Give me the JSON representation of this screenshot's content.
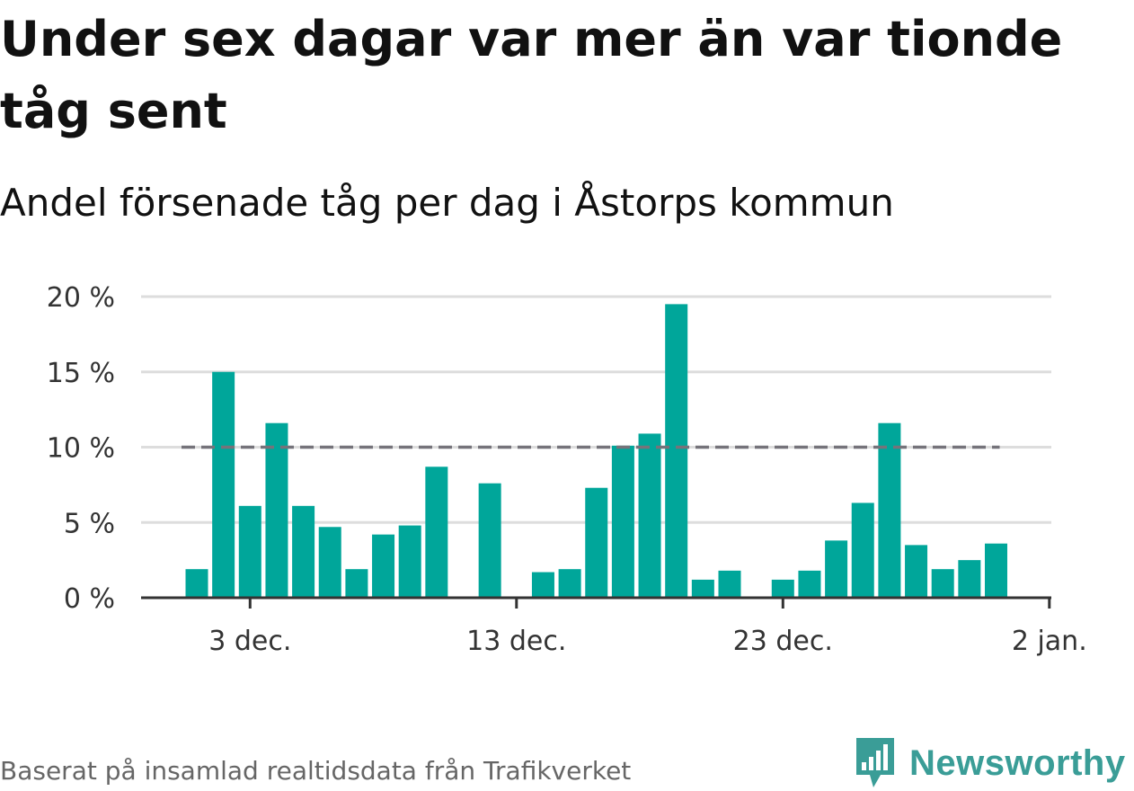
{
  "title": "Under sex dagar var mer än var tionde tåg sent",
  "subtitle": "Andel försenade tåg per dag i Åstorps kommun",
  "footer": "Baserat på insamlad realtidsdata från Trafikverket",
  "logo": {
    "text": "Newsworthy",
    "icon": "newsworthy-logo-icon"
  },
  "colors": {
    "bar": "#00a69a",
    "reference_line": "#75737a",
    "grid": "#dddddd",
    "axis": "#333333",
    "logo": "#3a9d97"
  },
  "chart_data": {
    "type": "bar",
    "x_axis": {
      "start": "1 dec.",
      "end": "31 dec.",
      "ticks": [
        {
          "date": "3 dec.",
          "label": "3 dec."
        },
        {
          "date": "13 dec.",
          "label": "13 dec."
        },
        {
          "date": "23 dec.",
          "label": "23 dec."
        },
        {
          "date": "2 jan.",
          "label": "2 jan."
        }
      ]
    },
    "dates": [
      "1 dec.",
      "2 dec.",
      "3 dec.",
      "4 dec.",
      "5 dec.",
      "6 dec.",
      "7 dec.",
      "8 dec.",
      "9 dec.",
      "10 dec.",
      "11 dec.",
      "12 dec.",
      "13 dec.",
      "14 dec.",
      "15 dec.",
      "16 dec.",
      "17 dec.",
      "18 dec.",
      "19 dec.",
      "20 dec.",
      "21 dec.",
      "22 dec.",
      "23 dec.",
      "24 dec.",
      "25 dec.",
      "26 dec.",
      "27 dec.",
      "28 dec.",
      "29 dec.",
      "30 dec.",
      "31 dec."
    ],
    "values": [
      1.9,
      15.0,
      6.1,
      11.6,
      6.1,
      4.7,
      1.9,
      4.2,
      4.8,
      8.7,
      0,
      7.6,
      0,
      1.7,
      1.9,
      7.3,
      10.1,
      10.9,
      19.5,
      1.2,
      1.8,
      0,
      1.2,
      1.8,
      3.8,
      6.3,
      11.6,
      3.5,
      1.9,
      2.5,
      3.6
    ],
    "unit": "%",
    "ylim": [
      0,
      20
    ],
    "y_ticks": [
      {
        "value": 0,
        "label": "0 %"
      },
      {
        "value": 5,
        "label": "5 %"
      },
      {
        "value": 10,
        "label": "10 %"
      },
      {
        "value": 15,
        "label": "15 %"
      },
      {
        "value": 20,
        "label": "20 %"
      }
    ],
    "reference_line": {
      "value": 10,
      "style": "dashed"
    },
    "grid": true,
    "legend": "none"
  }
}
